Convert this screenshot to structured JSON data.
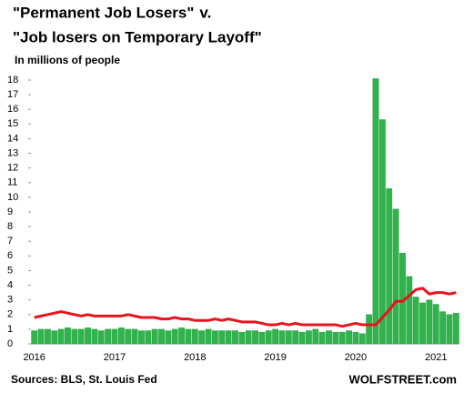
{
  "chart_data": {
    "type": "bar_line",
    "title": "\"Permanent Job Losers\"",
    "title_suffix": "v.",
    "subtitle": "\"Job losers on Temporary Layoff\"",
    "y_label": "In millions of people",
    "source": "Sources: BLS, St. Louis Fed",
    "watermark": "WOLFSTREET.com",
    "categories": [
      "2016",
      null,
      null,
      null,
      null,
      null,
      null,
      null,
      null,
      null,
      null,
      null,
      "2017",
      null,
      null,
      null,
      null,
      null,
      null,
      null,
      null,
      null,
      null,
      null,
      "2018",
      null,
      null,
      null,
      null,
      null,
      null,
      null,
      null,
      null,
      null,
      null,
      "2019",
      null,
      null,
      null,
      null,
      null,
      null,
      null,
      null,
      null,
      null,
      null,
      "2020",
      null,
      null,
      null,
      null,
      null,
      null,
      null,
      null,
      null,
      null,
      null,
      "2021",
      null,
      null,
      null
    ],
    "series": [
      {
        "type": "bar",
        "color": "#2fb34b",
        "values": [
          0.9,
          1.0,
          1.0,
          0.9,
          1.0,
          1.1,
          1.0,
          1.0,
          1.1,
          1.0,
          0.9,
          1.0,
          1.0,
          1.1,
          1.0,
          1.0,
          0.9,
          0.9,
          1.0,
          1.0,
          0.9,
          1.0,
          1.1,
          1.0,
          1.0,
          0.9,
          1.0,
          0.9,
          0.9,
          0.9,
          0.9,
          0.8,
          0.9,
          0.9,
          0.8,
          0.9,
          1.0,
          0.9,
          0.9,
          0.9,
          0.8,
          0.9,
          1.0,
          0.8,
          0.9,
          0.8,
          0.8,
          0.9,
          0.8,
          0.7,
          2.0,
          18.1,
          15.3,
          10.6,
          9.2,
          6.2,
          4.6,
          3.2,
          2.8,
          3.0,
          2.7,
          2.2,
          2.0,
          2.1
        ]
      },
      {
        "type": "line",
        "color": "#e8141c",
        "values": [
          1.8,
          1.9,
          2.0,
          2.1,
          2.2,
          2.1,
          2.0,
          1.9,
          2.0,
          1.9,
          1.9,
          1.9,
          1.9,
          1.9,
          2.0,
          1.9,
          1.8,
          1.8,
          1.8,
          1.7,
          1.7,
          1.8,
          1.7,
          1.7,
          1.6,
          1.6,
          1.6,
          1.7,
          1.6,
          1.7,
          1.6,
          1.5,
          1.5,
          1.5,
          1.4,
          1.3,
          1.3,
          1.4,
          1.3,
          1.4,
          1.3,
          1.3,
          1.3,
          1.3,
          1.3,
          1.3,
          1.2,
          1.3,
          1.4,
          1.3,
          1.3,
          1.3,
          1.8,
          2.3,
          2.9,
          2.9,
          3.3,
          3.7,
          3.8,
          3.4,
          3.5,
          3.5,
          3.4,
          3.5
        ]
      }
    ],
    "ylim": [
      0,
      18
    ],
    "yticks": [
      0,
      1,
      2,
      3,
      4,
      5,
      6,
      7,
      8,
      9,
      10,
      11,
      12,
      13,
      14,
      15,
      16,
      17,
      18
    ],
    "title_color": "#e8141c",
    "subtitle_color": "#2fb34b"
  }
}
